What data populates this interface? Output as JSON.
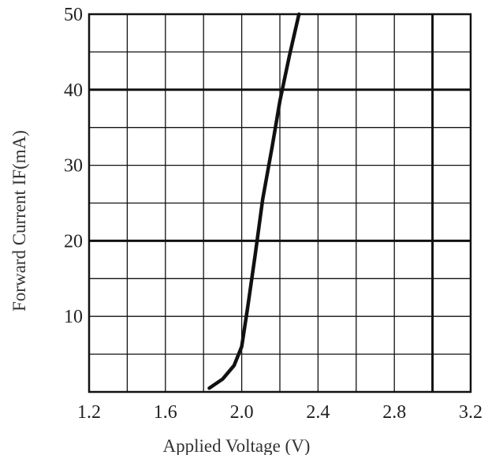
{
  "chart_data": {
    "type": "line",
    "title": "",
    "xlabel": "Applied Voltage  (V)",
    "ylabel": "Forward Current IF(mA)",
    "xlim": [
      1.2,
      3.2
    ],
    "ylim": [
      0,
      50
    ],
    "x_ticks": [
      "1.2",
      "1.6",
      "2.0",
      "2.4",
      "2.8",
      "3.2"
    ],
    "y_ticks": [
      "10",
      "20",
      "30",
      "40",
      "50"
    ],
    "grid": true,
    "series": [
      {
        "x": [
          1.83,
          1.9,
          1.96,
          2.0,
          2.03,
          2.07,
          2.11,
          2.16,
          2.2,
          2.25,
          2.3
        ],
        "y": [
          0.5,
          1.7,
          3.5,
          6.0,
          11.0,
          18.0,
          25.5,
          32.5,
          38.5,
          44.5,
          50.0
        ]
      }
    ]
  }
}
